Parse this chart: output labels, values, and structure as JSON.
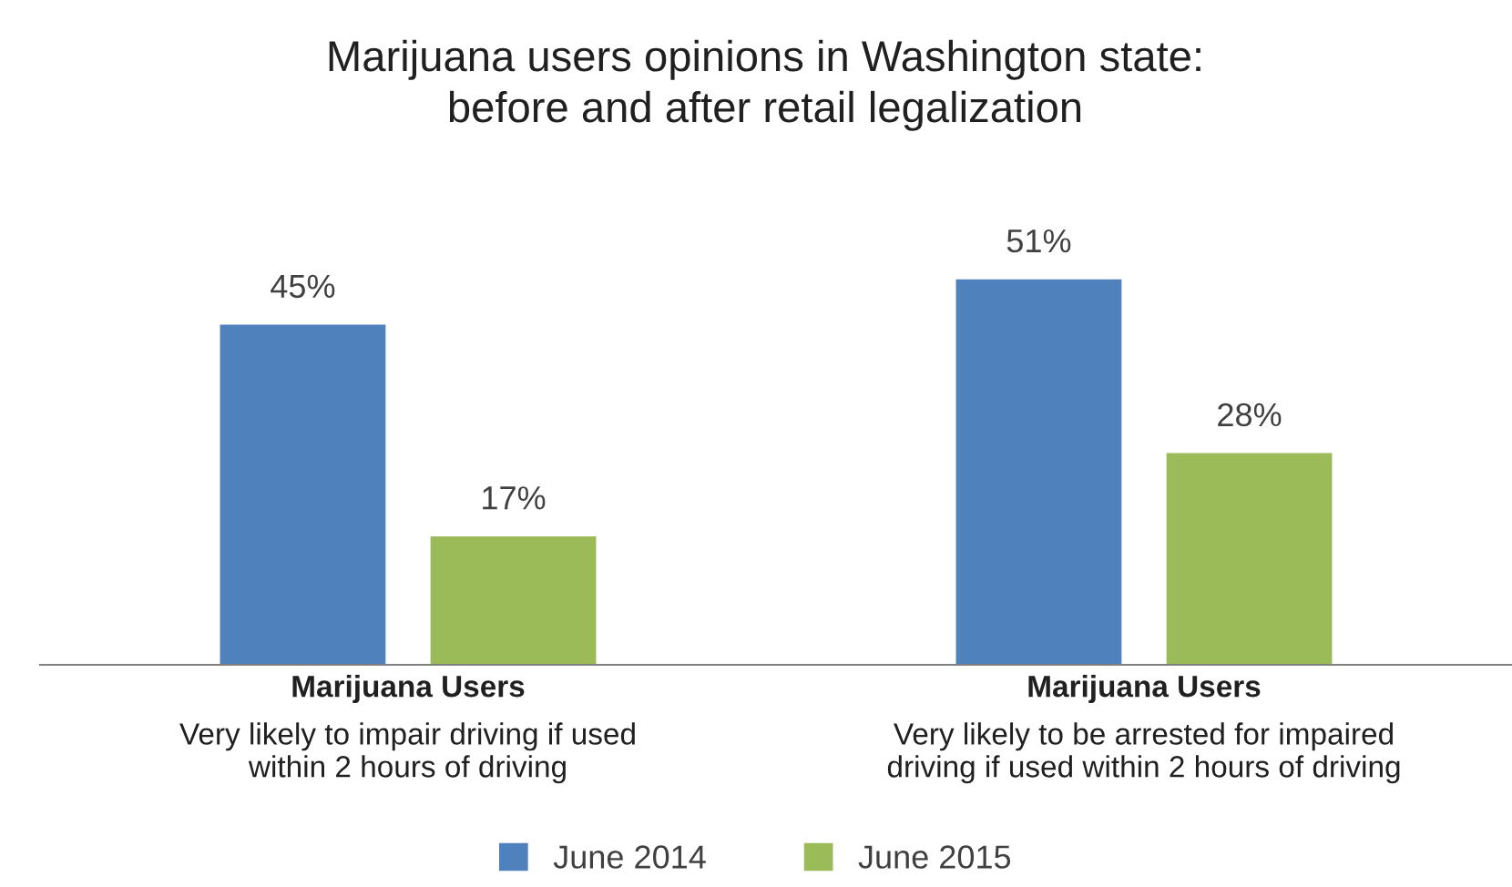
{
  "chart_data": {
    "type": "bar",
    "title": "Marijuana users opinions in Washington state:\nbefore and after retail legalization",
    "categories": [
      "Marijuana Users\nVery likely to impair driving if used\nwithin 2 hours of driving",
      "Marijuana Users\nVery likely to be arrested for impaired\ndriving if used within 2 hours of driving"
    ],
    "series": [
      {
        "name": "June 2014",
        "color": "#4f81bd",
        "values": [
          45,
          51
        ],
        "value_labels": [
          "45%",
          "51%"
        ]
      },
      {
        "name": "June 2015",
        "color": "#9bbb59",
        "values": [
          17,
          28
        ],
        "value_labels": [
          "17%",
          "28%"
        ]
      }
    ],
    "legend": "bottom"
  }
}
